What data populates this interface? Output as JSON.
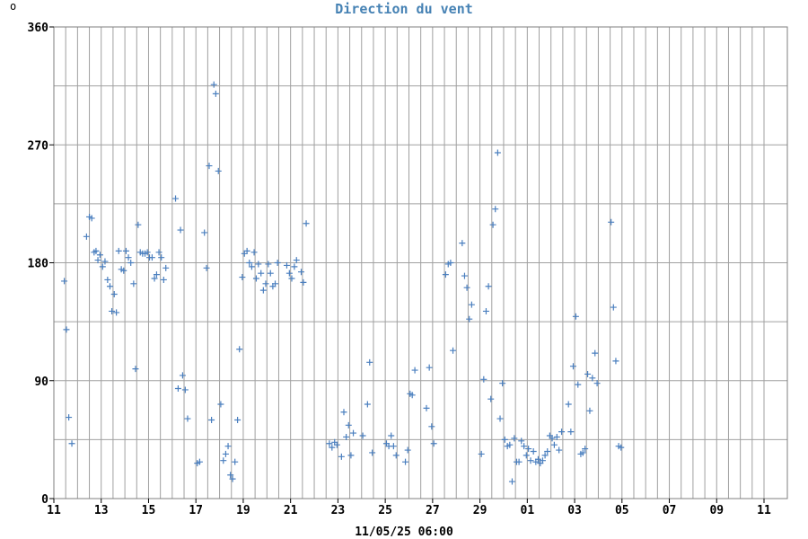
{
  "degree_symbol": "o",
  "chart_data": {
    "type": "scatter",
    "title": "Direction du vent",
    "xlabel": "11/05/25 06:00",
    "ylabel": "",
    "ylim": [
      0,
      360
    ],
    "yticks": [
      0,
      90,
      180,
      270,
      360
    ],
    "xlim": [
      0,
      30.5
    ],
    "x_ticks": [
      {
        "pos": 0,
        "label": "11"
      },
      {
        "pos": 2,
        "label": "13"
      },
      {
        "pos": 4,
        "label": "15"
      },
      {
        "pos": 6,
        "label": "17"
      },
      {
        "pos": 8,
        "label": "19"
      },
      {
        "pos": 10,
        "label": "21"
      },
      {
        "pos": 12,
        "label": "23"
      },
      {
        "pos": 14,
        "label": "25"
      },
      {
        "pos": 16,
        "label": "27"
      },
      {
        "pos": 18,
        "label": "29"
      },
      {
        "pos": 20,
        "label": "01"
      },
      {
        "pos": 22,
        "label": "03"
      },
      {
        "pos": 24,
        "label": "05"
      },
      {
        "pos": 26,
        "label": "07"
      },
      {
        "pos": 28,
        "label": "09"
      },
      {
        "pos": 30,
        "label": "11"
      }
    ],
    "grid": true,
    "marker": "plus",
    "marker_color": "#4a7fbf",
    "series": [
      {
        "points": [
          [
            0.44,
            166
          ],
          [
            0.53,
            129
          ],
          [
            0.63,
            62
          ],
          [
            0.76,
            42
          ],
          [
            1.38,
            200
          ],
          [
            1.5,
            215
          ],
          [
            1.6,
            214
          ],
          [
            1.7,
            188
          ],
          [
            1.78,
            189
          ],
          [
            1.86,
            182
          ],
          [
            1.95,
            186
          ],
          [
            2.06,
            177
          ],
          [
            2.16,
            181
          ],
          [
            2.27,
            167
          ],
          [
            2.37,
            162
          ],
          [
            2.45,
            143
          ],
          [
            2.55,
            156
          ],
          [
            2.64,
            142
          ],
          [
            2.74,
            189
          ],
          [
            2.85,
            175
          ],
          [
            2.95,
            174
          ],
          [
            3.05,
            189
          ],
          [
            3.15,
            184
          ],
          [
            3.25,
            180
          ],
          [
            3.37,
            164
          ],
          [
            3.45,
            99
          ],
          [
            3.56,
            209
          ],
          [
            3.65,
            188
          ],
          [
            3.75,
            187
          ],
          [
            3.85,
            187
          ],
          [
            3.95,
            188
          ],
          [
            4.04,
            184
          ],
          [
            4.15,
            184
          ],
          [
            4.25,
            168
          ],
          [
            4.34,
            171
          ],
          [
            4.44,
            188
          ],
          [
            4.54,
            184
          ],
          [
            4.64,
            167
          ],
          [
            4.73,
            176
          ],
          [
            5.14,
            229
          ],
          [
            5.25,
            84
          ],
          [
            5.35,
            205
          ],
          [
            5.44,
            94
          ],
          [
            5.55,
            83
          ],
          [
            5.65,
            61
          ],
          [
            6.06,
            27
          ],
          [
            6.16,
            28
          ],
          [
            6.36,
            203
          ],
          [
            6.45,
            176
          ],
          [
            6.56,
            254
          ],
          [
            6.66,
            60
          ],
          [
            6.76,
            316
          ],
          [
            6.84,
            309
          ],
          [
            6.95,
            250
          ],
          [
            7.05,
            72
          ],
          [
            7.16,
            29
          ],
          [
            7.26,
            34
          ],
          [
            7.36,
            40
          ],
          [
            7.46,
            18
          ],
          [
            7.55,
            15
          ],
          [
            7.65,
            28
          ],
          [
            7.76,
            60
          ],
          [
            7.84,
            114
          ],
          [
            7.96,
            169
          ],
          [
            8.05,
            187
          ],
          [
            8.16,
            189
          ],
          [
            8.26,
            180
          ],
          [
            8.36,
            177
          ],
          [
            8.46,
            188
          ],
          [
            8.55,
            168
          ],
          [
            8.64,
            179
          ],
          [
            8.75,
            172
          ],
          [
            8.85,
            159
          ],
          [
            8.95,
            164
          ],
          [
            9.06,
            179
          ],
          [
            9.15,
            172
          ],
          [
            9.25,
            162
          ],
          [
            9.35,
            164
          ],
          [
            9.45,
            180
          ],
          [
            9.84,
            178
          ],
          [
            9.95,
            172
          ],
          [
            10.05,
            168
          ],
          [
            10.16,
            177
          ],
          [
            10.25,
            182
          ],
          [
            10.45,
            173
          ],
          [
            10.54,
            165
          ],
          [
            10.66,
            210
          ],
          [
            11.64,
            42
          ],
          [
            11.75,
            39
          ],
          [
            11.86,
            43
          ],
          [
            11.96,
            41
          ],
          [
            12.15,
            32
          ],
          [
            12.25,
            66
          ],
          [
            12.35,
            47
          ],
          [
            12.45,
            56
          ],
          [
            12.55,
            33
          ],
          [
            12.65,
            50
          ],
          [
            13.05,
            48
          ],
          [
            13.25,
            72
          ],
          [
            13.34,
            104
          ],
          [
            13.45,
            35
          ],
          [
            14.05,
            42
          ],
          [
            14.15,
            40
          ],
          [
            14.25,
            48
          ],
          [
            14.35,
            40
          ],
          [
            14.46,
            33
          ],
          [
            14.85,
            28
          ],
          [
            14.95,
            37
          ],
          [
            15.05,
            80
          ],
          [
            15.14,
            79
          ],
          [
            15.25,
            98
          ],
          [
            15.74,
            69
          ],
          [
            15.86,
            100
          ],
          [
            15.96,
            55
          ],
          [
            16.05,
            42
          ],
          [
            16.55,
            171
          ],
          [
            16.66,
            179
          ],
          [
            16.76,
            180
          ],
          [
            16.86,
            113
          ],
          [
            17.25,
            195
          ],
          [
            17.35,
            170
          ],
          [
            17.45,
            161
          ],
          [
            17.55,
            137
          ],
          [
            17.65,
            148
          ],
          [
            18.06,
            34
          ],
          [
            18.16,
            91
          ],
          [
            18.26,
            143
          ],
          [
            18.36,
            162
          ],
          [
            18.46,
            76
          ],
          [
            18.55,
            209
          ],
          [
            18.65,
            221
          ],
          [
            18.75,
            264
          ],
          [
            18.85,
            61
          ],
          [
            18.95,
            88
          ],
          [
            19.05,
            45
          ],
          [
            19.16,
            40
          ],
          [
            19.26,
            41
          ],
          [
            19.36,
            13
          ],
          [
            19.45,
            46
          ],
          [
            19.55,
            28
          ],
          [
            19.65,
            28
          ],
          [
            19.75,
            44
          ],
          [
            19.86,
            40
          ],
          [
            19.96,
            33
          ],
          [
            20.05,
            38
          ],
          [
            20.14,
            29
          ],
          [
            20.26,
            36
          ],
          [
            20.36,
            28
          ],
          [
            20.46,
            30
          ],
          [
            20.55,
            27
          ],
          [
            20.65,
            29
          ],
          [
            20.75,
            33
          ],
          [
            20.85,
            36
          ],
          [
            20.95,
            48
          ],
          [
            21.05,
            46
          ],
          [
            21.14,
            41
          ],
          [
            21.25,
            47
          ],
          [
            21.34,
            37
          ],
          [
            21.45,
            51
          ],
          [
            21.74,
            72
          ],
          [
            21.84,
            51
          ],
          [
            21.94,
            101
          ],
          [
            22.05,
            139
          ],
          [
            22.14,
            87
          ],
          [
            22.26,
            34
          ],
          [
            22.35,
            35
          ],
          [
            22.44,
            38
          ],
          [
            22.55,
            95
          ],
          [
            22.64,
            67
          ],
          [
            22.75,
            92
          ],
          [
            22.86,
            111
          ],
          [
            22.95,
            88
          ],
          [
            23.54,
            211
          ],
          [
            23.64,
            146
          ],
          [
            23.74,
            105
          ],
          [
            23.86,
            40
          ],
          [
            23.96,
            39
          ]
        ]
      }
    ]
  }
}
